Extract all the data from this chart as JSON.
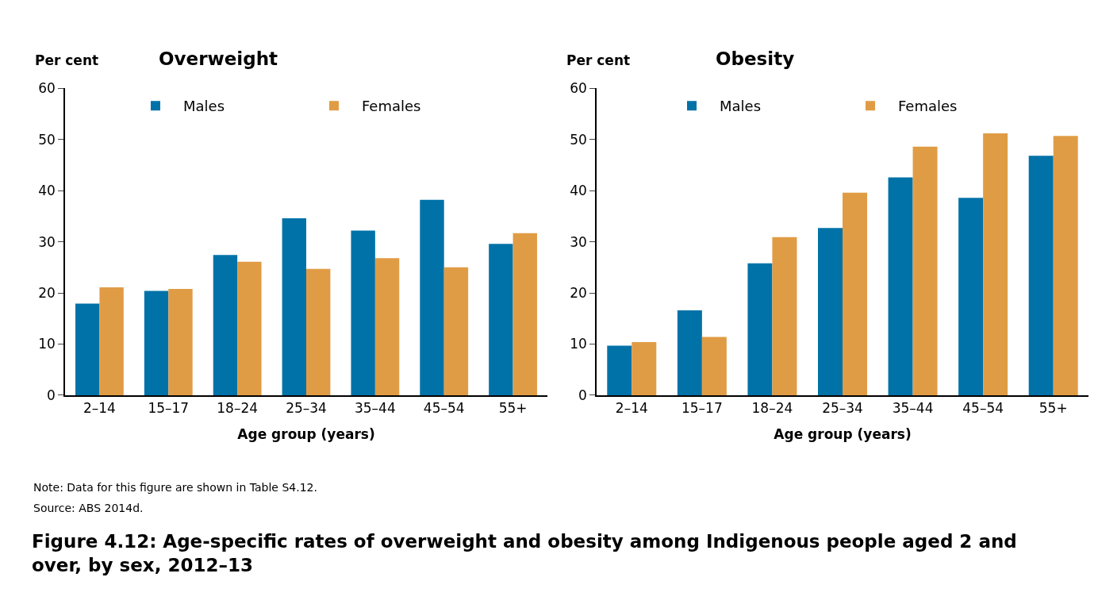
{
  "chart_data": [
    {
      "type": "bar",
      "title": "Overweight",
      "ylabel": "Per cent",
      "xlabel": "Age group (years)",
      "categories": [
        "2–14",
        "15–17",
        "18–24",
        "25–34",
        "35–44",
        "45–54",
        "55+"
      ],
      "series": [
        {
          "name": "Males",
          "color": "#0072a8",
          "values": [
            17.9,
            20.4,
            27.4,
            34.6,
            32.2,
            38.2,
            29.6
          ]
        },
        {
          "name": "Females",
          "color": "#e09c45",
          "values": [
            21.1,
            20.8,
            26.1,
            24.7,
            26.8,
            25.0,
            31.7
          ]
        }
      ],
      "ylim": [
        0,
        60
      ],
      "yticks": [
        0,
        10,
        20,
        30,
        40,
        50,
        60
      ],
      "grid": false,
      "legend": "top",
      "annotations": [
        "Note: Data for this figure are shown in Table S4.12.",
        "Source: ABS 2014d.",
        "Figure 4.12: Age-specific rates of overweight and obesity among Indigenous people aged 2 and over, by sex, 2012–13"
      ]
    },
    {
      "type": "bar",
      "title": "Obesity",
      "ylabel": "Per cent",
      "xlabel": "Age group (years)",
      "categories": [
        "2–14",
        "15–17",
        "18–24",
        "25–34",
        "35–44",
        "45–54",
        "55+"
      ],
      "series": [
        {
          "name": "Males",
          "color": "#0072a8",
          "values": [
            9.7,
            16.6,
            25.8,
            32.7,
            42.6,
            38.6,
            46.8
          ]
        },
        {
          "name": "Females",
          "color": "#e09c45",
          "values": [
            10.4,
            11.4,
            30.9,
            39.6,
            48.6,
            51.2,
            50.7
          ]
        }
      ],
      "ylim": [
        0,
        60
      ],
      "yticks": [
        0,
        10,
        20,
        30,
        40,
        50,
        60
      ],
      "grid": false,
      "legend": "top"
    }
  ]
}
